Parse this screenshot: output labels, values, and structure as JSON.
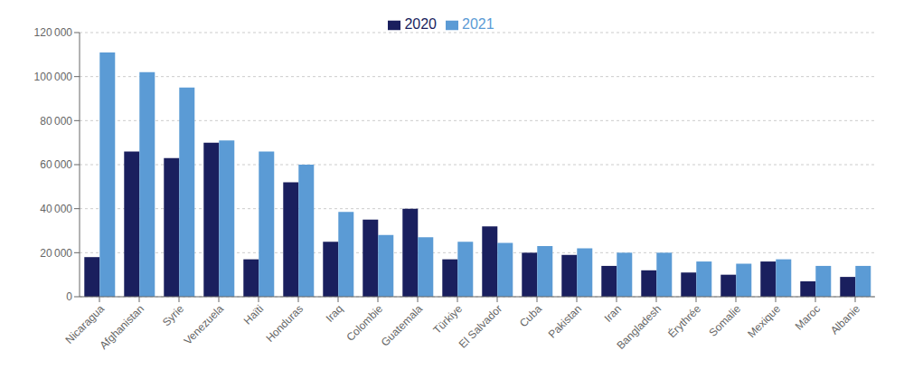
{
  "chart_data": {
    "type": "bar",
    "categories": [
      "Nicaragua",
      "Afghanistan",
      "Syrie",
      "Venezuela",
      "Haïti",
      "Honduras",
      "Iraq",
      "Colombie",
      "Guatemala",
      "Türkiye",
      "El Salvador",
      "Cuba",
      "Pakistan",
      "Iran",
      "Bangladesh",
      "Érythrée",
      "Somalie",
      "Mexique",
      "Maroc",
      "Albanie"
    ],
    "series": [
      {
        "name": "2020",
        "color": "#1a1f5e",
        "values": [
          18000,
          66000,
          63000,
          70000,
          17000,
          52000,
          25000,
          35000,
          40000,
          17000,
          32000,
          20000,
          19000,
          14000,
          12000,
          11000,
          10000,
          16000,
          7000,
          9000
        ]
      },
      {
        "name": "2021",
        "color": "#5b9bd5",
        "values": [
          111000,
          102000,
          95000,
          71000,
          66000,
          60000,
          38500,
          28000,
          27000,
          25000,
          24500,
          23000,
          22000,
          20000,
          20000,
          16000,
          15000,
          17000,
          14000,
          14000
        ]
      }
    ],
    "ylim": [
      0,
      120000
    ],
    "yticks": [
      0,
      {
        "value": 20000,
        "label": "20 000"
      },
      {
        "value": 40000,
        "label": "40 000"
      },
      {
        "value": 60000,
        "label": "60 000"
      },
      {
        "value": 80000,
        "label": "80 000"
      },
      {
        "value": 100000,
        "label": "100 000"
      },
      {
        "value": 120000,
        "label": "120 000"
      }
    ],
    "grid": true,
    "legend": "top"
  }
}
